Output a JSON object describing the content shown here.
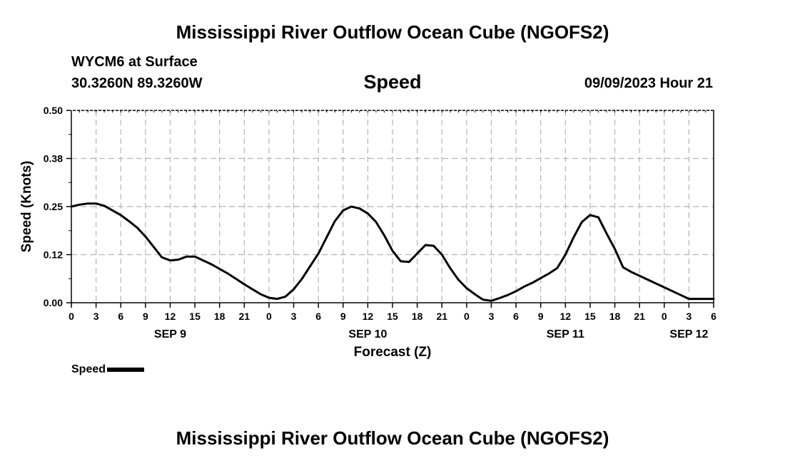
{
  "page": {
    "title_top": "Mississippi River Outflow Ocean Cube (NGOFS2)",
    "title_bottom": "Mississippi River Outflow Ocean Cube (NGOFS2)"
  },
  "header": {
    "station": "WYCM6 at Surface",
    "coords": "30.3260N  89.3260W",
    "variable": "Speed",
    "datetime": "09/09/2023 Hour 21"
  },
  "legend": {
    "label": "Speed"
  },
  "chart_data": {
    "type": "line",
    "title": "Speed",
    "xlabel": "Forecast (Z)",
    "ylabel": "Speed (Knots)",
    "ylim": [
      0.0,
      0.5
    ],
    "yticks": [
      "0.00",
      "0.12",
      "0.25",
      "0.38",
      "0.50"
    ],
    "ytick_values": [
      0.0,
      0.125,
      0.25,
      0.375,
      0.5
    ],
    "xlim": [
      0,
      78
    ],
    "xtick_labels": [
      "0",
      "3",
      "6",
      "9",
      "12",
      "15",
      "18",
      "21",
      "0",
      "3",
      "6",
      "9",
      "12",
      "15",
      "18",
      "21",
      "0",
      "3",
      "6",
      "9",
      "12",
      "15",
      "18",
      "21",
      "0",
      "3",
      "6"
    ],
    "day_labels": [
      {
        "label": "SEP 9",
        "hour": 12
      },
      {
        "label": "SEP 10",
        "hour": 36
      },
      {
        "label": "SEP 11",
        "hour": 60
      },
      {
        "label": "SEP 12",
        "hour": 75
      }
    ],
    "grid": true,
    "series": [
      {
        "name": "Speed",
        "x": [
          0,
          1,
          2,
          3,
          4,
          5,
          6,
          7,
          8,
          9,
          10,
          11,
          12,
          13,
          14,
          15,
          16,
          17,
          18,
          19,
          20,
          21,
          22,
          23,
          24,
          25,
          26,
          27,
          28,
          29,
          30,
          31,
          32,
          33,
          34,
          35,
          36,
          37,
          38,
          39,
          40,
          41,
          42,
          43,
          44,
          45,
          46,
          47,
          48,
          49,
          50,
          51,
          52,
          53,
          54,
          55,
          56,
          57,
          58,
          59,
          60,
          61,
          62,
          63,
          64,
          65,
          66,
          67,
          68,
          69,
          70,
          71,
          72,
          73,
          74,
          75,
          76,
          77,
          78
        ],
        "values": [
          0.25,
          0.255,
          0.258,
          0.258,
          0.252,
          0.24,
          0.228,
          0.212,
          0.195,
          0.172,
          0.145,
          0.118,
          0.11,
          0.112,
          0.12,
          0.12,
          0.11,
          0.1,
          0.088,
          0.076,
          0.062,
          0.048,
          0.035,
          0.022,
          0.013,
          0.01,
          0.016,
          0.035,
          0.062,
          0.095,
          0.128,
          0.17,
          0.212,
          0.24,
          0.25,
          0.245,
          0.232,
          0.21,
          0.175,
          0.135,
          0.108,
          0.106,
          0.128,
          0.15,
          0.148,
          0.125,
          0.09,
          0.06,
          0.038,
          0.022,
          0.008,
          0.005,
          0.012,
          0.02,
          0.03,
          0.042,
          0.052,
          0.064,
          0.076,
          0.09,
          0.125,
          0.17,
          0.21,
          0.228,
          0.222,
          0.18,
          0.14,
          0.092,
          0.08,
          0.07,
          0.06,
          0.05,
          0.04,
          0.03,
          0.02,
          0.01,
          0.01,
          0.01,
          0.01
        ]
      }
    ]
  }
}
